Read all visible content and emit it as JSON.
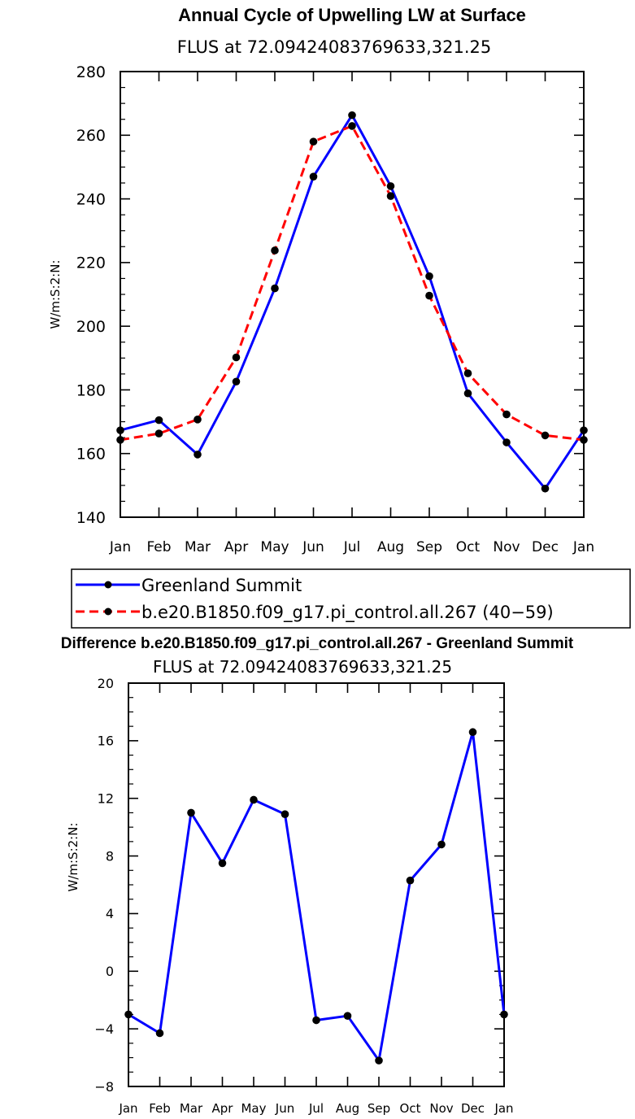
{
  "chart_data": [
    {
      "type": "line",
      "title": "Annual Cycle of Upwelling LW at Surface",
      "subtitle": "FLUS at 72.09424083769633,321.25",
      "xlabel": "",
      "ylabel": "W/m:S:2:N:",
      "categories": [
        "Jan",
        "Feb",
        "Mar",
        "Apr",
        "May",
        "Jun",
        "Jul",
        "Aug",
        "Sep",
        "Oct",
        "Nov",
        "Dec",
        "Jan"
      ],
      "ylim": [
        140,
        280
      ],
      "yticks": [
        140,
        160,
        180,
        200,
        220,
        240,
        260,
        280
      ],
      "series": [
        {
          "name": "Greenland Summit",
          "color": "#0000ff",
          "dash": "solid",
          "values": [
            167.3,
            170.5,
            159.7,
            182.6,
            211.9,
            247.0,
            266.3,
            244.0,
            215.7,
            178.9,
            163.5,
            149.0,
            167.3
          ]
        },
        {
          "name": "b.e20.B1850.f09_g17.pi_control.all.267 (40−59)",
          "color": "#ff0000",
          "dash": "dashed",
          "values": [
            164.3,
            166.3,
            170.7,
            190.2,
            223.8,
            258.0,
            262.9,
            240.9,
            209.6,
            185.2,
            172.3,
            165.7,
            164.3
          ]
        }
      ]
    },
    {
      "type": "line",
      "title": "Difference b.e20.B1850.f09_g17.pi_control.all.267 - Greenland Summit",
      "subtitle": "FLUS at 72.09424083769633,321.25",
      "xlabel": "",
      "ylabel": "W/m:S:2:N:",
      "categories": [
        "Jan",
        "Feb",
        "Mar",
        "Apr",
        "May",
        "Jun",
        "Jul",
        "Aug",
        "Sep",
        "Oct",
        "Nov",
        "Dec",
        "Jan"
      ],
      "ylim": [
        -8,
        20
      ],
      "yticks": [
        -8,
        -4,
        0,
        4,
        8,
        12,
        16,
        20
      ],
      "series": [
        {
          "name": "Difference",
          "color": "#0000ff",
          "dash": "solid",
          "values": [
            -3.0,
            -4.3,
            11.0,
            7.5,
            11.9,
            10.9,
            -3.4,
            -3.1,
            -6.2,
            6.3,
            8.8,
            16.6,
            -3.0
          ]
        }
      ]
    }
  ]
}
